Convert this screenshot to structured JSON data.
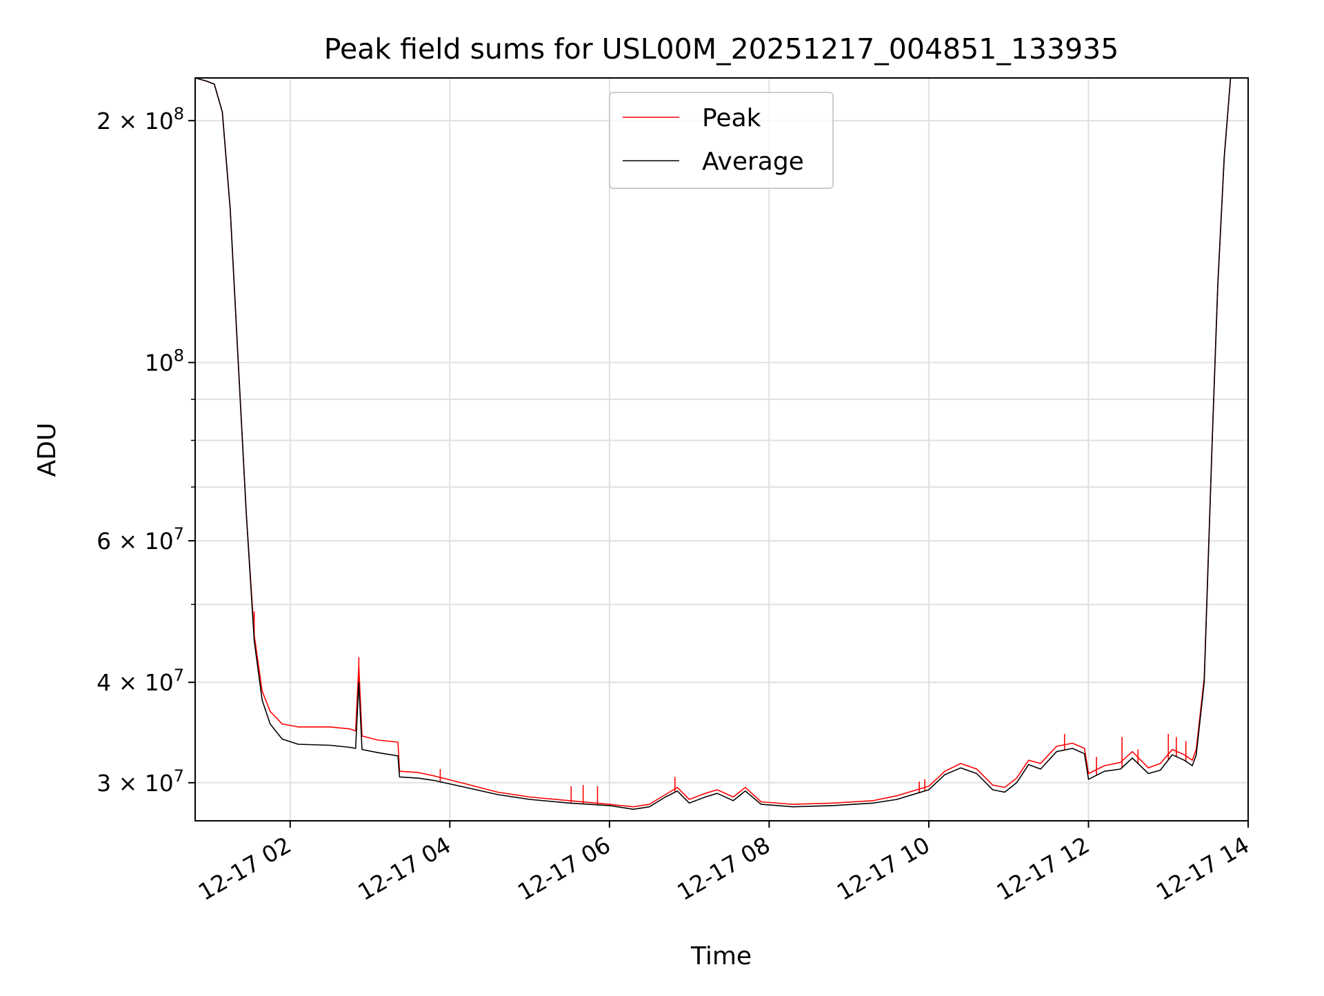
{
  "chart_data": {
    "type": "line",
    "title": "Peak field sums for USL00M_20251217_004851_133935",
    "xlabel": "Time",
    "ylabel": "ADU",
    "yscale": "log",
    "xlim": [
      0.81,
      14.0
    ],
    "ylim": [
      26900000,
      226000000
    ],
    "grid": true,
    "legend_position": "upper center",
    "x_ticks": [
      {
        "value": 2,
        "label": "12-17 02"
      },
      {
        "value": 4,
        "label": "12-17 04"
      },
      {
        "value": 6,
        "label": "12-17 06"
      },
      {
        "value": 8,
        "label": "12-17 08"
      },
      {
        "value": 10,
        "label": "12-17 10"
      },
      {
        "value": 12,
        "label": "12-17 12"
      },
      {
        "value": 14,
        "label": "12-17 14"
      }
    ],
    "y_ticks": [
      {
        "value": 200000000,
        "mantissa": "2 × 10",
        "exp": "8"
      },
      {
        "value": 100000000,
        "mantissa": "10",
        "exp": "8"
      },
      {
        "value": 60000000,
        "mantissa": "6 × 10",
        "exp": "7"
      },
      {
        "value": 40000000,
        "mantissa": "4 × 10",
        "exp": "7"
      },
      {
        "value": 30000000,
        "mantissa": "3 × 10",
        "exp": "7"
      }
    ],
    "y_minor_ticks": [
      90000000,
      80000000,
      70000000,
      50000000
    ],
    "series": [
      {
        "name": "Average",
        "color": "#000000",
        "points": [
          [
            0.81,
            226000000
          ],
          [
            0.95,
            224000000
          ],
          [
            1.05,
            222000000
          ],
          [
            1.15,
            205000000
          ],
          [
            1.25,
            155000000
          ],
          [
            1.35,
            100000000
          ],
          [
            1.45,
            65000000
          ],
          [
            1.55,
            45000000
          ],
          [
            1.65,
            38000000
          ],
          [
            1.75,
            35500000
          ],
          [
            1.9,
            34000000
          ],
          [
            2.1,
            33500000
          ],
          [
            2.5,
            33400000
          ],
          [
            2.75,
            33200000
          ],
          [
            2.82,
            33100000
          ],
          [
            2.86,
            40000000
          ],
          [
            2.9,
            33000000
          ],
          [
            3.1,
            32700000
          ],
          [
            3.35,
            32400000
          ],
          [
            3.37,
            30500000
          ],
          [
            3.6,
            30400000
          ],
          [
            3.8,
            30200000
          ],
          [
            4.2,
            29600000
          ],
          [
            4.6,
            29000000
          ],
          [
            5.0,
            28600000
          ],
          [
            5.5,
            28300000
          ],
          [
            6.0,
            28100000
          ],
          [
            6.3,
            27800000
          ],
          [
            6.5,
            28000000
          ],
          [
            6.7,
            28800000
          ],
          [
            6.85,
            29300000
          ],
          [
            7.0,
            28300000
          ],
          [
            7.2,
            28800000
          ],
          [
            7.35,
            29100000
          ],
          [
            7.55,
            28500000
          ],
          [
            7.7,
            29300000
          ],
          [
            7.9,
            28200000
          ],
          [
            8.3,
            28000000
          ],
          [
            8.8,
            28100000
          ],
          [
            9.3,
            28300000
          ],
          [
            9.6,
            28600000
          ],
          [
            9.85,
            29100000
          ],
          [
            10.0,
            29400000
          ],
          [
            10.2,
            30700000
          ],
          [
            10.4,
            31300000
          ],
          [
            10.6,
            30800000
          ],
          [
            10.8,
            29400000
          ],
          [
            10.95,
            29200000
          ],
          [
            11.1,
            30000000
          ],
          [
            11.25,
            31600000
          ],
          [
            11.4,
            31200000
          ],
          [
            11.6,
            32800000
          ],
          [
            11.8,
            33100000
          ],
          [
            11.95,
            32600000
          ],
          [
            12.0,
            30300000
          ],
          [
            12.2,
            31000000
          ],
          [
            12.4,
            31200000
          ],
          [
            12.55,
            32200000
          ],
          [
            12.75,
            30800000
          ],
          [
            12.9,
            31100000
          ],
          [
            13.05,
            32500000
          ],
          [
            13.2,
            32000000
          ],
          [
            13.3,
            31500000
          ],
          [
            13.35,
            32500000
          ],
          [
            13.45,
            40000000
          ],
          [
            13.55,
            80000000
          ],
          [
            13.62,
            125000000
          ],
          [
            13.7,
            180000000
          ],
          [
            13.78,
            226000000
          ]
        ]
      },
      {
        "name": "Peak",
        "color": "#ff0000",
        "points": [
          [
            0.81,
            226000000
          ],
          [
            0.95,
            224000000
          ],
          [
            1.05,
            222000000
          ],
          [
            1.15,
            205000000
          ],
          [
            1.25,
            155000000
          ],
          [
            1.35,
            100000000
          ],
          [
            1.45,
            65000000
          ],
          [
            1.55,
            45800000
          ],
          [
            1.65,
            39000000
          ],
          [
            1.75,
            36800000
          ],
          [
            1.9,
            35500000
          ],
          [
            2.1,
            35200000
          ],
          [
            2.5,
            35200000
          ],
          [
            2.75,
            35000000
          ],
          [
            2.82,
            34800000
          ],
          [
            2.86,
            42000000
          ],
          [
            2.9,
            34300000
          ],
          [
            3.1,
            33900000
          ],
          [
            3.35,
            33700000
          ],
          [
            3.37,
            31000000
          ],
          [
            3.6,
            30900000
          ],
          [
            3.8,
            30600000
          ],
          [
            4.2,
            29900000
          ],
          [
            4.6,
            29200000
          ],
          [
            5.0,
            28800000
          ],
          [
            5.5,
            28500000
          ],
          [
            6.0,
            28200000
          ],
          [
            6.3,
            28000000
          ],
          [
            6.5,
            28200000
          ],
          [
            6.7,
            29000000
          ],
          [
            6.85,
            29600000
          ],
          [
            7.0,
            28600000
          ],
          [
            7.2,
            29100000
          ],
          [
            7.35,
            29400000
          ],
          [
            7.55,
            28800000
          ],
          [
            7.7,
            29600000
          ],
          [
            7.9,
            28400000
          ],
          [
            8.3,
            28200000
          ],
          [
            8.8,
            28300000
          ],
          [
            9.3,
            28500000
          ],
          [
            9.6,
            28900000
          ],
          [
            9.85,
            29400000
          ],
          [
            10.0,
            29700000
          ],
          [
            10.2,
            31000000
          ],
          [
            10.4,
            31700000
          ],
          [
            10.6,
            31200000
          ],
          [
            10.8,
            29800000
          ],
          [
            10.95,
            29600000
          ],
          [
            11.1,
            30400000
          ],
          [
            11.25,
            32000000
          ],
          [
            11.4,
            31700000
          ],
          [
            11.6,
            33300000
          ],
          [
            11.8,
            33600000
          ],
          [
            11.95,
            33100000
          ],
          [
            12.0,
            30800000
          ],
          [
            12.2,
            31500000
          ],
          [
            12.4,
            31800000
          ],
          [
            12.55,
            32800000
          ],
          [
            12.75,
            31300000
          ],
          [
            12.9,
            31700000
          ],
          [
            13.05,
            33000000
          ],
          [
            13.2,
            32500000
          ],
          [
            13.3,
            32000000
          ],
          [
            13.35,
            33000000
          ],
          [
            13.45,
            40500000
          ],
          [
            13.55,
            80000000
          ],
          [
            13.62,
            125000000
          ],
          [
            13.7,
            180000000
          ],
          [
            13.78,
            226000000
          ]
        ],
        "spikes": [
          [
            1.55,
            49000000
          ],
          [
            2.86,
            43000000
          ],
          [
            3.88,
            31200000
          ],
          [
            5.52,
            29700000
          ],
          [
            5.67,
            29800000
          ],
          [
            5.85,
            29700000
          ],
          [
            6.82,
            30500000
          ],
          [
            9.88,
            30100000
          ],
          [
            9.95,
            30300000
          ],
          [
            11.7,
            34500000
          ],
          [
            12.1,
            32300000
          ],
          [
            12.42,
            34200000
          ],
          [
            12.62,
            33000000
          ],
          [
            13.0,
            34500000
          ],
          [
            13.1,
            34200000
          ],
          [
            13.22,
            33800000
          ]
        ]
      }
    ]
  }
}
